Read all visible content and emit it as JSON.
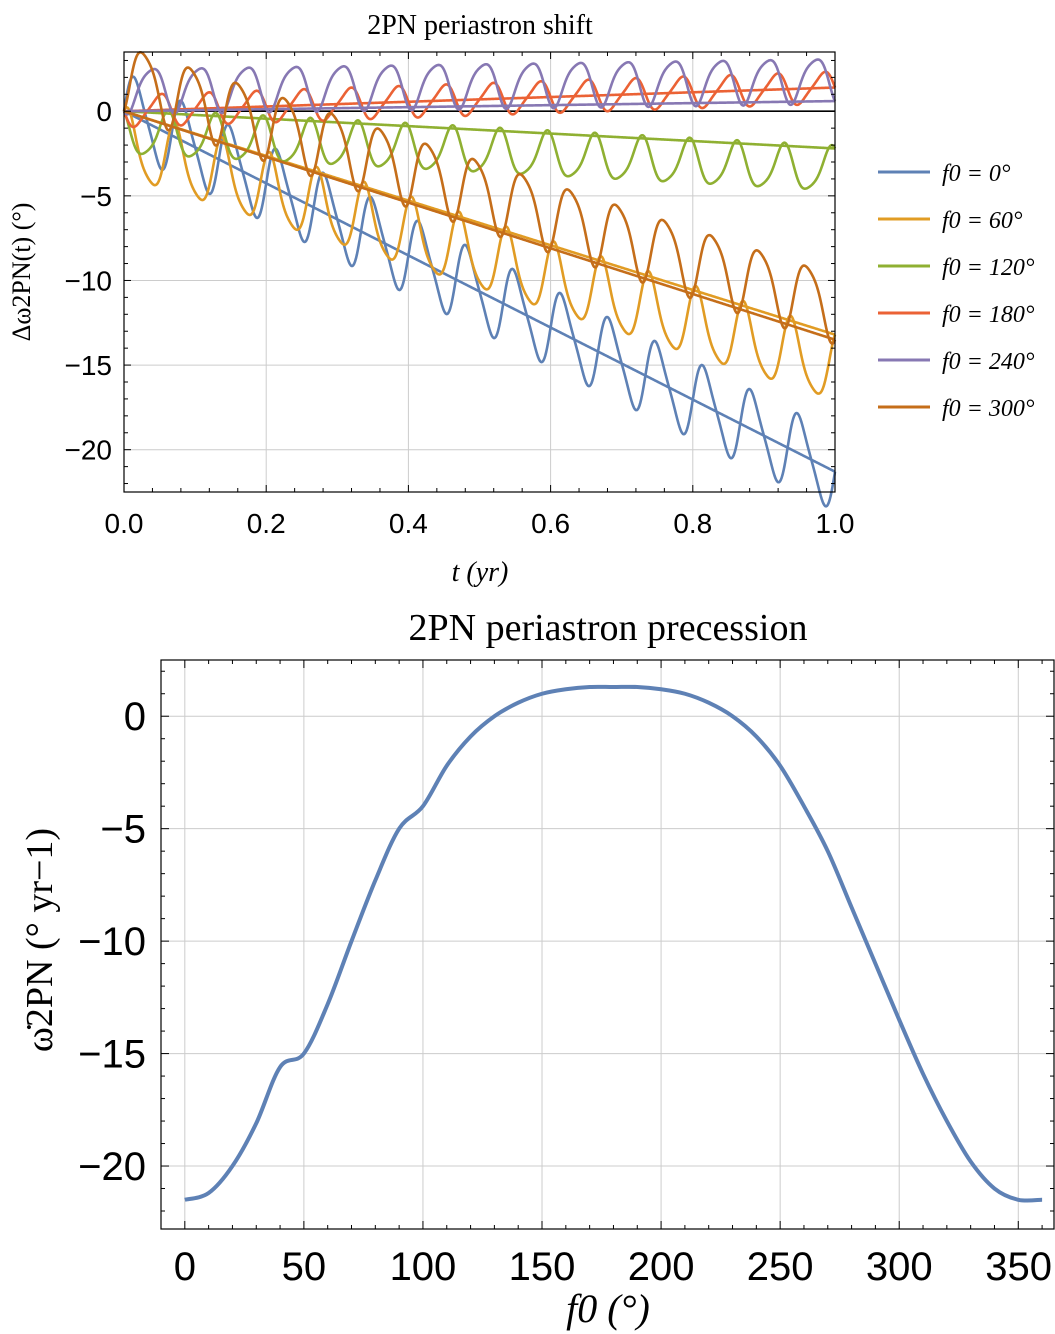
{
  "chart_data": [
    {
      "type": "line",
      "title": "2PN periastron shift",
      "xlabel": "t  (yr)",
      "ylabel": "Δω2PN(t)  (°)",
      "xlim": [
        0,
        1
      ],
      "ylim": [
        -22.5,
        3.5
      ],
      "xticks": [
        "0.0",
        "0.2",
        "0.4",
        "0.6",
        "0.8",
        "1.0"
      ],
      "xtick_values": [
        0,
        0.2,
        0.4,
        0.6,
        0.8,
        1.0
      ],
      "yticks": [
        "0",
        "−5",
        "−10",
        "−15",
        "−20"
      ],
      "ytick_values": [
        0,
        -5,
        -10,
        -15,
        -20
      ],
      "grid": true,
      "legend_position": "right",
      "zero_line": true,
      "orbits_per_year": 15,
      "series": [
        {
          "name": "f0 = 0°",
          "color": "#5E81B5",
          "secular_rate": -21.3,
          "osc_amplitude": 2.2,
          "osc_phase": 0
        },
        {
          "name": "f0 = 60°",
          "color": "#E19C24",
          "secular_rate": -13.2,
          "osc_amplitude": 2.0,
          "osc_phase": 60
        },
        {
          "name": "f0 = 120°",
          "color": "#8FB032",
          "secular_rate": -2.2,
          "osc_amplitude": 1.3,
          "osc_phase": 120
        },
        {
          "name": "f0 = 180°",
          "color": "#EB6235",
          "secular_rate": 1.4,
          "osc_amplitude": 0.9,
          "osc_phase": 180
        },
        {
          "name": "f0 = 240°",
          "color": "#8778B3",
          "secular_rate": 0.6,
          "osc_amplitude": 1.3,
          "osc_phase": 240
        },
        {
          "name": "f0 = 300°",
          "color": "#C56E1A",
          "secular_rate": -13.5,
          "osc_amplitude": 2.0,
          "osc_phase": 300
        }
      ]
    },
    {
      "type": "line",
      "title": "2PN periastron precession",
      "xlabel": "f0  (°)",
      "ylabel": "ω̇2PN  (° yr−1)",
      "xlim": [
        -10,
        365
      ],
      "ylim": [
        -22.8,
        2.5
      ],
      "xticks": [
        "0",
        "50",
        "100",
        "150",
        "200",
        "250",
        "300",
        "350"
      ],
      "xtick_values": [
        0,
        50,
        100,
        150,
        200,
        250,
        300,
        350
      ],
      "yticks": [
        "0",
        "−5",
        "−10",
        "−15",
        "−20"
      ],
      "ytick_values": [
        0,
        -5,
        -10,
        -15,
        -20
      ],
      "grid": true,
      "series": [
        {
          "color": "#5E81B5",
          "x": [
            0,
            10,
            20,
            30,
            40,
            50,
            60,
            70,
            80,
            90,
            100,
            110,
            120,
            130,
            140,
            150,
            160,
            170,
            180,
            190,
            200,
            210,
            220,
            230,
            240,
            250,
            260,
            270,
            280,
            290,
            300,
            310,
            320,
            330,
            340,
            350,
            360
          ],
          "values": [
            -21.5,
            -21.2,
            -20.0,
            -18.1,
            -15.6,
            -15.0,
            -12.8,
            -10.0,
            -7.3,
            -5.0,
            -4.0,
            -2.2,
            -0.9,
            0.0,
            0.6,
            1.0,
            1.2,
            1.3,
            1.3,
            1.3,
            1.2,
            1.0,
            0.6,
            0.0,
            -0.9,
            -2.2,
            -4.0,
            -6.0,
            -8.5,
            -11.0,
            -13.5,
            -15.9,
            -18.0,
            -19.8,
            -21.0,
            -21.5,
            -21.5
          ]
        }
      ]
    }
  ]
}
